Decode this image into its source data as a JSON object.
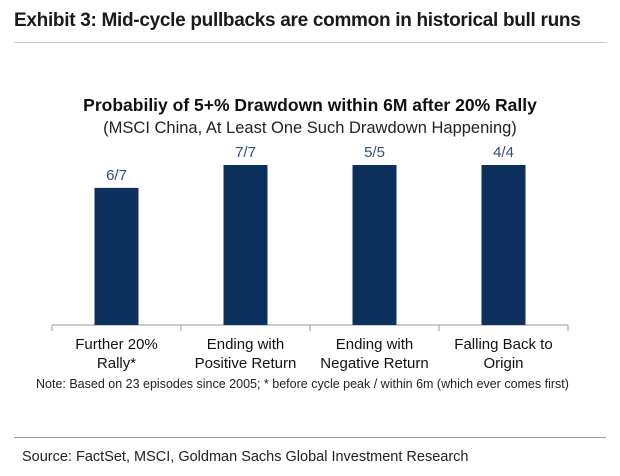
{
  "exhibit_title": "Exhibit 3: Mid-cycle pullbacks are common in historical bull runs",
  "note": "Note: Based on 23 episodes since 2005; * before cycle peak / within 6m (which ever comes first)",
  "source": "Source: FactSet, MSCI, Goldman Sachs Global Investment Research",
  "colors": {
    "bar": "#0d2f5c",
    "data_label": "#2e4f7a",
    "axis": "#9a9a9a"
  },
  "chart_data": {
    "type": "bar",
    "title": "Probabiliy of 5+% Drawdown within 6M after 20% Rally",
    "subtitle": "(MSCI China, At Least One Such Drawdown Happening)",
    "categories": [
      [
        "Further 20%",
        "Rally*"
      ],
      [
        "Ending with",
        "Positive Return"
      ],
      [
        "Ending with",
        "Negative Return"
      ],
      [
        "Falling Back to",
        "Origin"
      ]
    ],
    "values": [
      0.857,
      1.0,
      1.0,
      1.0
    ],
    "data_labels": [
      "6/7",
      "7/7",
      "5/5",
      "4/4"
    ],
    "ylim": [
      0,
      1
    ],
    "grid": false,
    "legend": "none"
  }
}
